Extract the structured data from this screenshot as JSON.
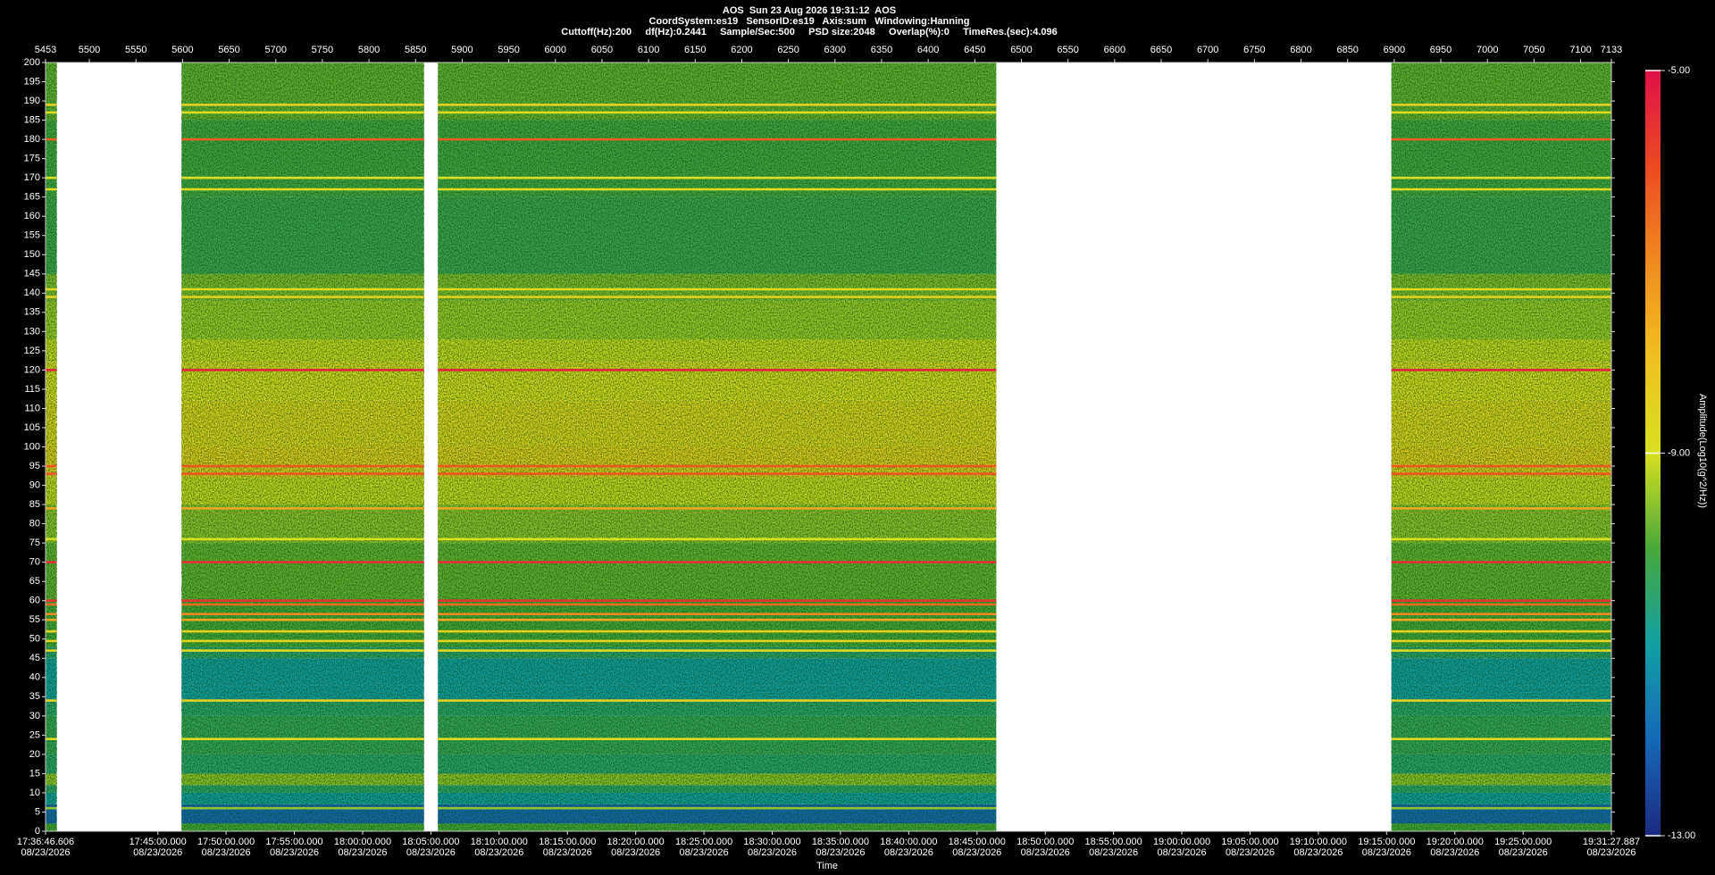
{
  "chart_data": {
    "type": "spectrogram",
    "title": "AOS  Sun 23 Aug 2026 19:31:12  AOS",
    "subtitle": [
      "CoordSystem:es19   SensorID:es19   Axis:sum   Windowing:Hanning",
      "Cuttoff(Hz):200     df(Hz):0.2441     Sample/Sec:500     PSD size:2048     Overlap(%):0     TimeRes.(sec):4.096"
    ],
    "x2label": "Time",
    "colorbar_label": "Amplitude(Log10(g^2/Hz))",
    "xlim": [
      5453,
      7133
    ],
    "xticks": [
      5453,
      5500,
      5550,
      5600,
      5650,
      5700,
      5750,
      5800,
      5850,
      5900,
      5950,
      6000,
      6050,
      6100,
      6150,
      6200,
      6250,
      6300,
      6350,
      6400,
      6450,
      6500,
      6550,
      6600,
      6650,
      6700,
      6750,
      6800,
      6850,
      6900,
      6950,
      7000,
      7050,
      7100,
      7133
    ],
    "x2lim": [
      "17:36:46.606",
      "19:31:27.887"
    ],
    "x2ticks": [
      {
        "time": "17:36:46.606",
        "date": "08/23/2026"
      },
      {
        "time": "17:45:00.000",
        "date": "08/23/2026"
      },
      {
        "time": "17:50:00.000",
        "date": "08/23/2026"
      },
      {
        "time": "17:55:00.000",
        "date": "08/23/2026"
      },
      {
        "time": "18:00:00.000",
        "date": "08/23/2026"
      },
      {
        "time": "18:05:00.000",
        "date": "08/23/2026"
      },
      {
        "time": "18:10:00.000",
        "date": "08/23/2026"
      },
      {
        "time": "18:15:00.000",
        "date": "08/23/2026"
      },
      {
        "time": "18:20:00.000",
        "date": "08/23/2026"
      },
      {
        "time": "18:25:00.000",
        "date": "08/23/2026"
      },
      {
        "time": "18:30:00.000",
        "date": "08/23/2026"
      },
      {
        "time": "18:35:00.000",
        "date": "08/23/2026"
      },
      {
        "time": "18:40:00.000",
        "date": "08/23/2026"
      },
      {
        "time": "18:45:00.000",
        "date": "08/23/2026"
      },
      {
        "time": "18:50:00.000",
        "date": "08/23/2026"
      },
      {
        "time": "18:55:00.000",
        "date": "08/23/2026"
      },
      {
        "time": "19:00:00.000",
        "date": "08/23/2026"
      },
      {
        "time": "19:05:00.000",
        "date": "08/23/2026"
      },
      {
        "time": "19:10:00.000",
        "date": "08/23/2026"
      },
      {
        "time": "19:15:00.000",
        "date": "08/23/2026"
      },
      {
        "time": "19:20:00.000",
        "date": "08/23/2026"
      },
      {
        "time": "19:25:00.000",
        "date": "08/23/2026"
      },
      {
        "time": "19:31:27.887",
        "date": "08/23/2026"
      }
    ],
    "ylim": [
      0,
      200
    ],
    "yticks": [
      0,
      5,
      10,
      15,
      20,
      25,
      30,
      35,
      40,
      45,
      50,
      55,
      60,
      65,
      70,
      75,
      80,
      85,
      90,
      95,
      100,
      105,
      110,
      115,
      120,
      125,
      130,
      135,
      140,
      145,
      150,
      155,
      160,
      165,
      170,
      175,
      180,
      185,
      190,
      195,
      200
    ],
    "clim": [
      -13,
      -5
    ],
    "cticks": [
      {
        "value": -5,
        "label": "-5.00"
      },
      {
        "value": -9,
        "label": "-9.00"
      },
      {
        "value": -13,
        "label": "-13.00"
      }
    ],
    "colormap": [
      "#1c2a80",
      "#1668b8",
      "#12a0a4",
      "#48a83a",
      "#d8e020",
      "#f0c020",
      "#f08a20",
      "#ec4a20",
      "#e0104a"
    ],
    "segments": [
      [
        5453,
        5465
      ],
      [
        5599,
        5859
      ],
      [
        5874,
        6473
      ],
      [
        6897,
        7133
      ]
    ],
    "bins": [
      0,
      2,
      7,
      10,
      12,
      15,
      20,
      30,
      34,
      38,
      45,
      48,
      60,
      75,
      85,
      92,
      100,
      112,
      122,
      128,
      138,
      145,
      165,
      185,
      200
    ],
    "amplitude": [
      -10,
      -12,
      -11,
      -10.5,
      -9.5,
      -10.5,
      -10.3,
      -10.5,
      -11,
      -11,
      -10.5,
      -10,
      -9.8,
      -9.5,
      -9.1,
      -8.5,
      -8.7,
      -8.9,
      -9.1,
      -9.4,
      -9.6,
      -10.2,
      -10.1,
      -9.8
    ],
    "line_freqs": [
      189,
      187,
      180,
      170,
      167,
      141,
      139,
      120,
      95,
      93,
      84,
      76,
      70,
      60,
      59,
      56.5,
      55,
      52,
      49.5,
      47,
      34,
      24,
      6
    ],
    "line_amps": [
      -8.5,
      -8.8,
      -6.3,
      -9,
      -8.8,
      -8.8,
      -8.5,
      -5.3,
      -6.2,
      -6.2,
      -7.5,
      -9,
      -5.5,
      -5.6,
      -6.5,
      -7,
      -7.5,
      -8.5,
      -8.6,
      -8.7,
      -8.5,
      -8.8,
      -9.5
    ]
  }
}
